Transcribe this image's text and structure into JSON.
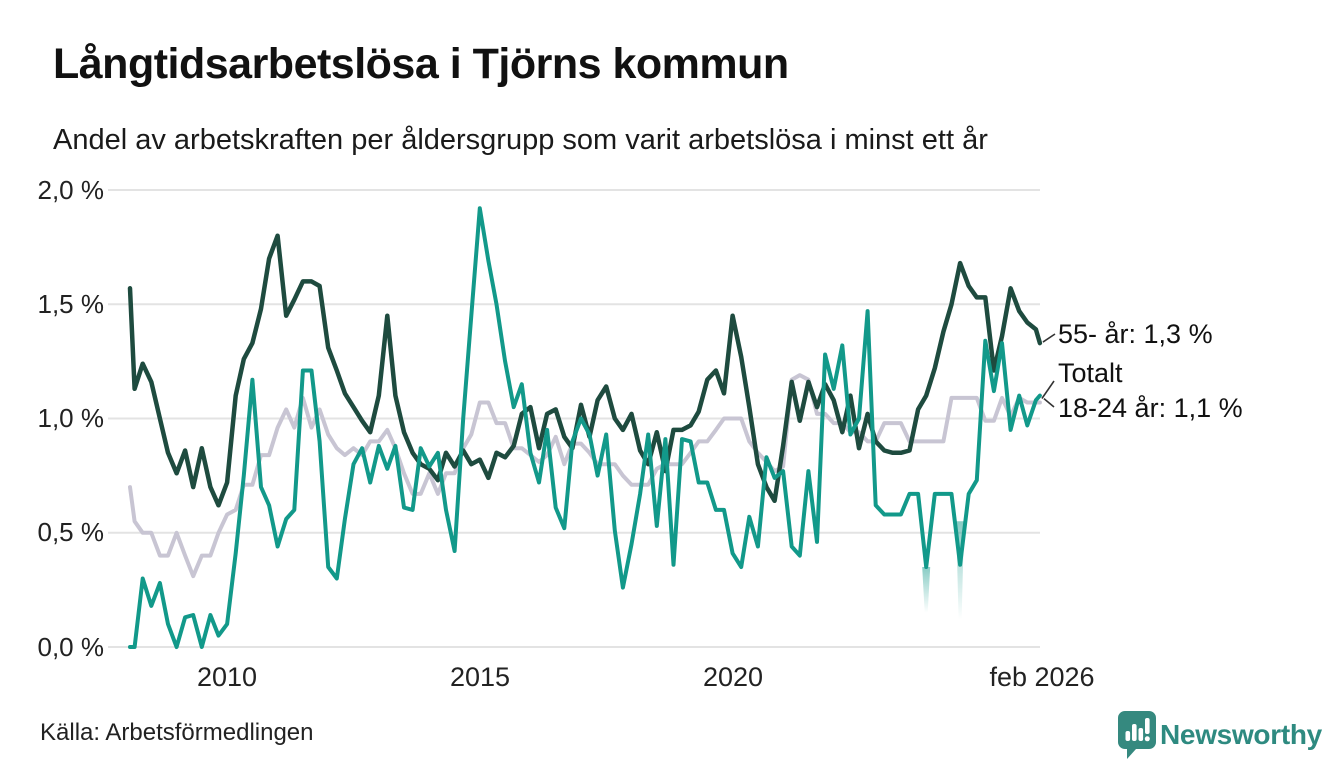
{
  "header": {
    "title": "Långtidsarbetslösa i Tjörns kommun",
    "subtitle": "Andel av arbetskraften per åldersgrupp som varit arbetslösa i minst ett år"
  },
  "footer": {
    "source": "Källa: Arbetsförmedlingen",
    "brand": "Newsworthy"
  },
  "colors": {
    "series_55": "#1e4b3f",
    "series_totalt": "#c8c5d3",
    "series_1824": "#12998a",
    "grid": "#e3e3e3",
    "connector": "#333333",
    "brand_teal": "#35897f",
    "text": "#1a1a1a"
  },
  "chart_data": {
    "type": "line",
    "title": "Långtidsarbetslösa i Tjörns kommun",
    "subtitle": "Andel av arbetskraften per åldersgrupp som varit arbetslösa i minst ett år",
    "xlabel": "",
    "ylabel": "",
    "grid": true,
    "legend_position": "end-of-line-labels-right",
    "y_axis": {
      "ticks": [
        "0,0 %",
        "0,5 %",
        "1,0 %",
        "1,5 %",
        "2,0 %"
      ],
      "values": [
        0,
        0.5,
        1.0,
        1.5,
        2.0
      ],
      "range": [
        0,
        2.0
      ]
    },
    "x_axis": {
      "ticks": [
        "2010",
        "2015",
        "2020",
        "feb 2026"
      ],
      "tick_years": [
        2010,
        2015,
        2020,
        2026.08
      ],
      "range": [
        2008.08,
        2026.08
      ]
    },
    "x": [
      2008.08,
      2008.17,
      2008.33,
      2008.5,
      2008.67,
      2008.83,
      2009,
      2009.17,
      2009.33,
      2009.5,
      2009.67,
      2009.83,
      2010,
      2010.17,
      2010.33,
      2010.5,
      2010.67,
      2010.83,
      2011,
      2011.17,
      2011.33,
      2011.5,
      2011.67,
      2011.83,
      2012,
      2012.17,
      2012.33,
      2012.5,
      2012.67,
      2012.83,
      2013,
      2013.17,
      2013.33,
      2013.5,
      2013.67,
      2013.83,
      2014,
      2014.17,
      2014.33,
      2014.5,
      2014.67,
      2014.83,
      2015,
      2015.17,
      2015.33,
      2015.5,
      2015.67,
      2015.83,
      2016,
      2016.17,
      2016.33,
      2016.5,
      2016.67,
      2016.83,
      2017,
      2017.17,
      2017.33,
      2017.5,
      2017.67,
      2017.83,
      2018,
      2018.17,
      2018.33,
      2018.5,
      2018.67,
      2018.83,
      2019,
      2019.17,
      2019.33,
      2019.5,
      2019.67,
      2019.83,
      2020,
      2020.17,
      2020.33,
      2020.5,
      2020.67,
      2020.83,
      2021,
      2021.17,
      2021.33,
      2021.5,
      2021.67,
      2021.83,
      2022,
      2022.17,
      2022.33,
      2022.5,
      2022.67,
      2022.83,
      2023,
      2023.17,
      2023.33,
      2023.5,
      2023.67,
      2023.83,
      2024,
      2024.17,
      2024.33,
      2024.5,
      2024.67,
      2024.83,
      2025,
      2025.17,
      2025.33,
      2025.5,
      2025.67,
      2025.83,
      2026,
      2026.08
    ],
    "series": [
      {
        "id": "55",
        "name": "55- år",
        "label": "55- år: 1,3 %",
        "end_value": "1,3 %",
        "color": "#1e4b3f",
        "values": [
          1.57,
          1.13,
          1.24,
          1.16,
          1.0,
          0.85,
          0.76,
          0.86,
          0.7,
          0.87,
          0.7,
          0.62,
          0.72,
          1.1,
          1.26,
          1.33,
          1.48,
          1.7,
          1.8,
          1.45,
          1.52,
          1.6,
          1.6,
          1.58,
          1.31,
          1.21,
          1.11,
          1.05,
          0.99,
          0.94,
          1.1,
          1.45,
          1.1,
          0.94,
          0.85,
          0.8,
          0.78,
          0.73,
          0.85,
          0.79,
          0.86,
          0.8,
          0.82,
          0.74,
          0.85,
          0.83,
          0.88,
          1.02,
          1.05,
          0.87,
          1.02,
          1.04,
          0.92,
          0.87,
          1.06,
          0.92,
          1.08,
          1.14,
          1.0,
          0.95,
          1.02,
          0.86,
          0.8,
          0.94,
          0.77,
          0.95,
          0.95,
          0.97,
          1.03,
          1.17,
          1.21,
          1.11,
          1.45,
          1.27,
          1.05,
          0.8,
          0.7,
          0.64,
          0.88,
          1.16,
          0.99,
          1.16,
          1.05,
          1.15,
          1.08,
          0.94,
          1.1,
          0.87,
          1.02,
          0.9,
          0.86,
          0.85,
          0.85,
          0.86,
          1.04,
          1.1,
          1.22,
          1.38,
          1.5,
          1.68,
          1.58,
          1.53,
          1.53,
          1.21,
          1.36,
          1.57,
          1.47,
          1.42,
          1.39,
          1.33
        ]
      },
      {
        "id": "totalt",
        "name": "Totalt",
        "label": "Totalt",
        "end_value": "",
        "color": "#c8c5d3",
        "values": [
          0.7,
          0.55,
          0.5,
          0.5,
          0.4,
          0.4,
          0.5,
          0.4,
          0.31,
          0.4,
          0.4,
          0.5,
          0.58,
          0.6,
          0.71,
          0.71,
          0.84,
          0.84,
          0.96,
          1.04,
          0.96,
          1.09,
          0.96,
          1.04,
          0.93,
          0.87,
          0.84,
          0.87,
          0.84,
          0.9,
          0.9,
          0.95,
          0.87,
          0.76,
          0.67,
          0.67,
          0.76,
          0.67,
          0.76,
          0.76,
          0.87,
          0.93,
          1.07,
          1.07,
          0.98,
          0.98,
          0.87,
          0.87,
          0.84,
          0.81,
          0.84,
          0.92,
          0.8,
          0.89,
          0.89,
          0.85,
          0.8,
          0.8,
          0.8,
          0.75,
          0.71,
          0.71,
          0.71,
          0.78,
          0.8,
          0.8,
          0.8,
          0.85,
          0.9,
          0.9,
          0.95,
          1.0,
          1.0,
          1.0,
          0.9,
          0.85,
          0.81,
          0.77,
          0.79,
          1.17,
          1.19,
          1.17,
          1.02,
          1.02,
          0.98,
          0.98,
          0.94,
          0.94,
          0.9,
          0.9,
          0.98,
          0.98,
          0.98,
          0.9,
          0.9,
          0.9,
          0.9,
          0.9,
          1.09,
          1.09,
          1.09,
          1.09,
          0.99,
          0.99,
          1.09,
          1.01,
          1.09,
          1.07,
          1.07,
          1.07
        ]
      },
      {
        "id": "18-24",
        "name": "18-24 år",
        "label": "18-24 år: 1,1 %",
        "end_value": "1,1 %",
        "color": "#12998a",
        "values": [
          0.0,
          0.0,
          0.3,
          0.18,
          0.28,
          0.1,
          0.0,
          0.13,
          0.14,
          0.0,
          0.14,
          0.05,
          0.1,
          0.41,
          0.75,
          1.17,
          0.7,
          0.62,
          0.44,
          0.56,
          0.6,
          1.21,
          1.21,
          0.9,
          0.35,
          0.3,
          0.56,
          0.8,
          0.87,
          0.72,
          0.88,
          0.78,
          0.88,
          0.61,
          0.6,
          0.87,
          0.79,
          0.85,
          0.6,
          0.42,
          1.0,
          1.45,
          1.92,
          1.69,
          1.5,
          1.25,
          1.05,
          1.15,
          0.85,
          0.72,
          0.95,
          0.61,
          0.52,
          0.9,
          1.0,
          0.93,
          0.75,
          0.93,
          0.51,
          0.26,
          0.45,
          0.67,
          0.93,
          0.53,
          0.91,
          0.36,
          0.91,
          0.9,
          0.72,
          0.72,
          0.6,
          0.6,
          0.41,
          0.35,
          0.57,
          0.44,
          0.83,
          0.74,
          0.77,
          0.44,
          0.4,
          0.77,
          0.46,
          1.28,
          1.13,
          1.32,
          0.93,
          1.0,
          1.47,
          0.62,
          0.58,
          0.58,
          0.58,
          0.67,
          0.67,
          0.35,
          0.67,
          0.67,
          0.67,
          0.36,
          0.67,
          0.73,
          1.34,
          1.12,
          1.33,
          0.95,
          1.1,
          0.97,
          1.08,
          1.1
        ]
      }
    ],
    "uncertainty_markers": [
      {
        "series": "18-24 år",
        "x": 2023.83,
        "from": 0.35,
        "to": 0.15
      },
      {
        "series": "18-24 år",
        "x": 2024.5,
        "from": 0.55,
        "to": 0.12
      }
    ]
  }
}
